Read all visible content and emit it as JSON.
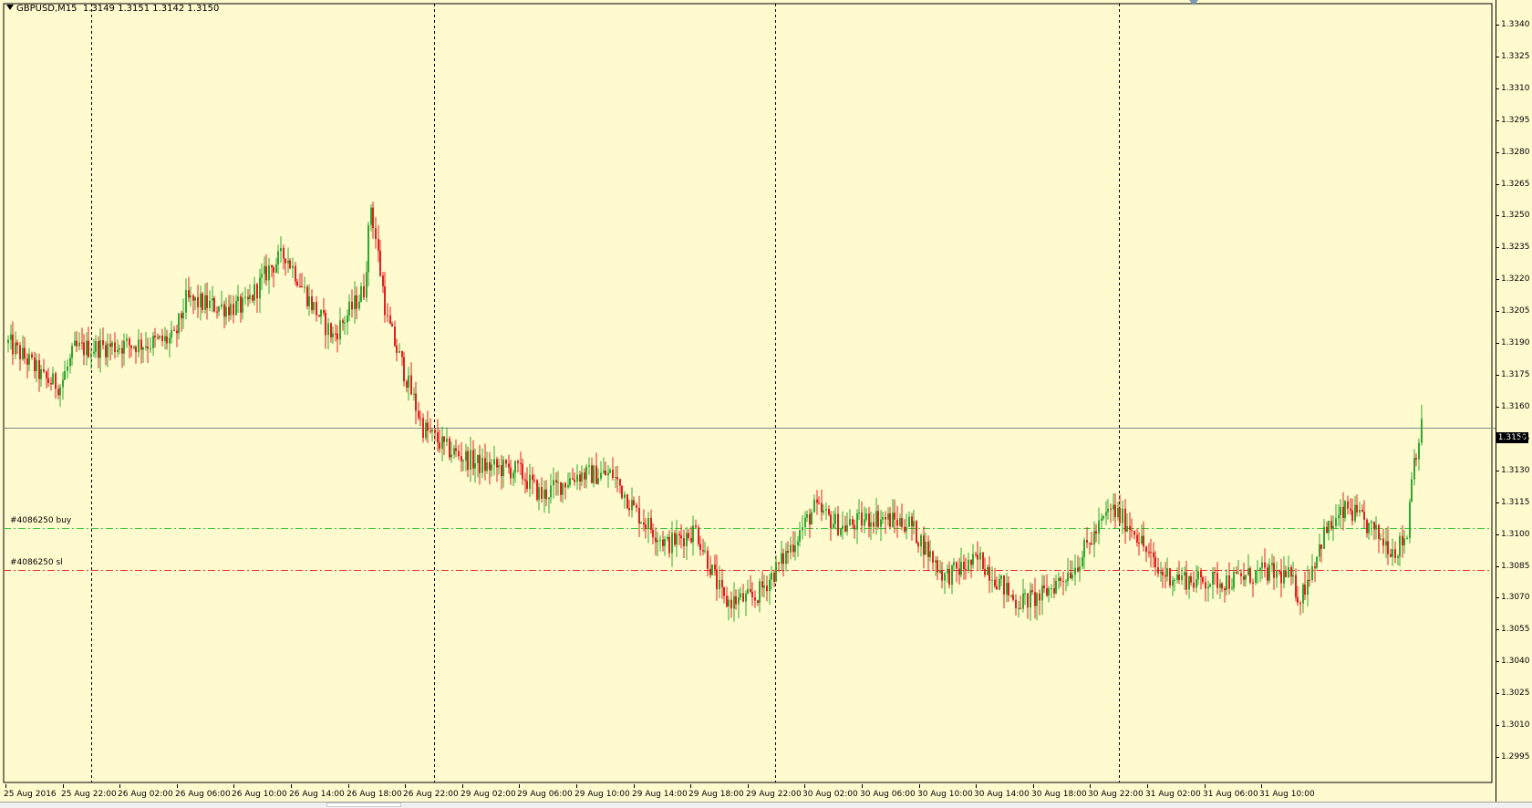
{
  "chart_header": {
    "symbol": "GBPUSD,M15",
    "ohlc": "1.3149 1.3151 1.3142 1.3150"
  },
  "current_price_label": "1.3150",
  "colors": {
    "background": "#FFFBCF",
    "bull": "#2FA82F",
    "bear": "#E02020",
    "buy_line": "#3CC83C",
    "sl_line": "#E83030",
    "grid": "#000000",
    "price_line": "#7A8A8A"
  },
  "orders": [
    {
      "label": "#4086250 buy",
      "price": 1.3103,
      "style": "dash-dot",
      "color": "#3CC83C"
    },
    {
      "label": "#4086250 sl",
      "price": 1.3083,
      "style": "dash-dot",
      "color": "#E83030"
    }
  ],
  "chart_data": {
    "type": "candlestick",
    "symbol": "GBPUSD",
    "timeframe": "M15",
    "y_axis": {
      "range": [
        1.2988,
        1.335
      ],
      "tick_labels": [
        "1.3340",
        "1.3325",
        "1.3310",
        "1.3295",
        "1.3280",
        "1.3265",
        "1.3250",
        "1.3235",
        "1.3220",
        "1.3205",
        "1.3190",
        "1.3175",
        "1.3160",
        "1.3145",
        "1.3130",
        "1.3115",
        "1.3100",
        "1.3085",
        "1.3070",
        "1.3055",
        "1.3040",
        "1.3025",
        "1.3010",
        "1.2995"
      ]
    },
    "x_axis": {
      "tick_labels": [
        "25 Aug 2016",
        "25 Aug 22:00",
        "26 Aug 02:00",
        "26 Aug 06:00",
        "26 Aug 10:00",
        "26 Aug 14:00",
        "26 Aug 18:00",
        "26 Aug 22:00",
        "29 Aug 02:00",
        "29 Aug 06:00",
        "29 Aug 10:00",
        "29 Aug 14:00",
        "29 Aug 18:00",
        "29 Aug 22:00",
        "30 Aug 02:00",
        "30 Aug 06:00",
        "30 Aug 10:00",
        "30 Aug 14:00",
        "30 Aug 18:00",
        "30 Aug 22:00",
        "31 Aug 02:00",
        "31 Aug 06:00",
        "31 Aug 10:00"
      ]
    },
    "day_separators": [
      "26 Aug",
      "29 Aug",
      "30 Aug",
      "31 Aug"
    ],
    "price_path_anchors": [
      [
        0,
        1.319
      ],
      [
        10,
        1.318
      ],
      [
        15,
        1.3173
      ],
      [
        22,
        1.317
      ],
      [
        28,
        1.3187
      ],
      [
        60,
        1.319
      ],
      [
        70,
        1.3192
      ],
      [
        75,
        1.321
      ],
      [
        90,
        1.3207
      ],
      [
        100,
        1.3207
      ],
      [
        110,
        1.3225
      ],
      [
        117,
        1.3232
      ],
      [
        127,
        1.321
      ],
      [
        137,
        1.3193
      ],
      [
        150,
        1.3215
      ],
      [
        153,
        1.3255
      ],
      [
        160,
        1.32
      ],
      [
        175,
        1.315
      ],
      [
        185,
        1.314
      ],
      [
        200,
        1.3132
      ],
      [
        215,
        1.313
      ],
      [
        225,
        1.3118
      ],
      [
        240,
        1.3128
      ],
      [
        255,
        1.3128
      ],
      [
        265,
        1.311
      ],
      [
        278,
        1.3095
      ],
      [
        290,
        1.3102
      ],
      [
        302,
        1.3068
      ],
      [
        315,
        1.307
      ],
      [
        325,
        1.3085
      ],
      [
        340,
        1.3112
      ],
      [
        352,
        1.3103
      ],
      [
        365,
        1.3108
      ],
      [
        380,
        1.3105
      ],
      [
        395,
        1.308
      ],
      [
        410,
        1.3088
      ],
      [
        425,
        1.3068
      ],
      [
        435,
        1.307
      ],
      [
        450,
        1.3085
      ],
      [
        465,
        1.3112
      ],
      [
        475,
        1.3102
      ],
      [
        485,
        1.3082
      ],
      [
        500,
        1.3078
      ],
      [
        515,
        1.3078
      ],
      [
        530,
        1.3082
      ],
      [
        540,
        1.308
      ],
      [
        545,
        1.307
      ],
      [
        555,
        1.31
      ],
      [
        565,
        1.3112
      ],
      [
        575,
        1.3102
      ],
      [
        585,
        1.3092
      ],
      [
        590,
        1.31
      ],
      [
        592,
        1.313
      ],
      [
        596,
        1.315
      ]
    ]
  }
}
